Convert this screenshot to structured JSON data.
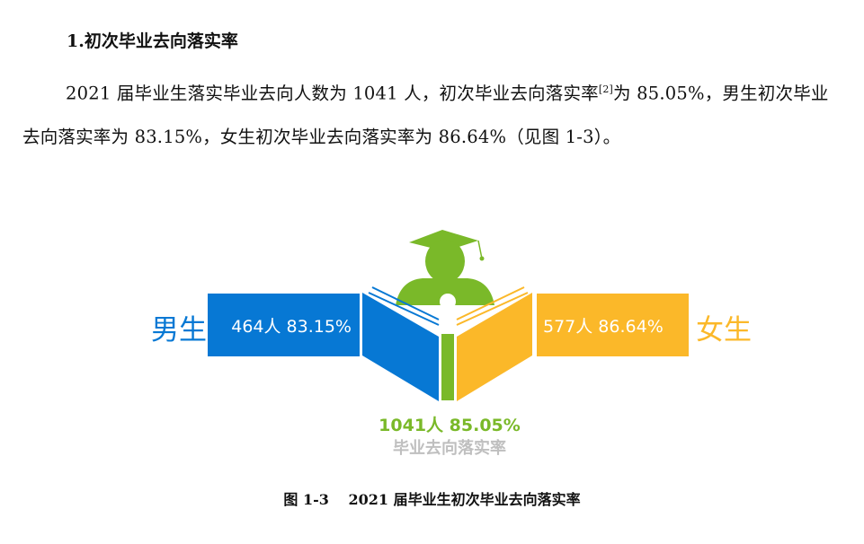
{
  "section_title": "1.初次毕业去向落实率",
  "paragraph": {
    "before_ref": "2021 届毕业生落实毕业去向人数为 1041 人，初次毕业去向落实率",
    "ref": "[2]",
    "after_ref": "为 85.05%，男生初次毕业去向落实率为 83.15%，女生初次毕业去向落实率为 86.64%（见图 1-3）。"
  },
  "infographic": {
    "male": {
      "label": "男生",
      "value": "464人 83.15%",
      "color": "#0778d4"
    },
    "female": {
      "label": "女生",
      "value": "577人 86.64%",
      "color": "#fbb829"
    },
    "total": {
      "value": "1041人 85.05%",
      "label": "毕业去向落实率",
      "color": "#7ab929",
      "label_color": "#bfbfbf"
    },
    "icon": "graduate-reading-book-icon"
  },
  "caption": "图 1-3　 2021 届毕业生初次毕业去向落实率"
}
